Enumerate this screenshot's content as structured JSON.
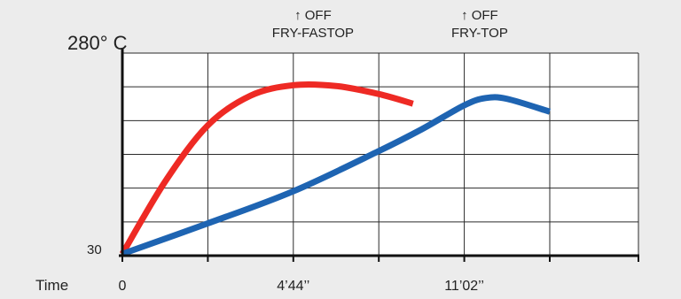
{
  "chart_data": {
    "type": "line",
    "xlabel": "Time",
    "ylabel": "",
    "y_top_label": "280° C",
    "y_bottom_label": "30",
    "ylim": [
      30,
      280
    ],
    "grid": true,
    "x_tick_labels": [
      {
        "x": 0,
        "label": "0"
      },
      {
        "x": 4,
        "label": "4’44’’"
      },
      {
        "x": 8,
        "label": "11’02’’"
      }
    ],
    "x_grid": [
      0,
      2,
      4,
      6,
      8,
      10
    ],
    "xlim": [
      0,
      12
    ],
    "series": [
      {
        "name": "",
        "color": "#ee2a24",
        "x": [
          0,
          1,
          2,
          3,
          4,
          5,
          6,
          6.8
        ],
        "y": [
          30,
          120,
          190,
          227,
          240,
          239,
          229,
          217
        ]
      },
      {
        "name": "",
        "color": "#1e64b2",
        "x": [
          0,
          2,
          4,
          6,
          7,
          8,
          8.5,
          9,
          10
        ],
        "y": [
          30,
          68,
          108,
          158,
          185,
          215,
          224,
          223,
          207
        ]
      }
    ],
    "annotations": [
      {
        "x": 5.6,
        "lines": [
          "↑ OFF",
          "FRY-FASTOP"
        ]
      },
      {
        "x": 9.5,
        "lines": [
          "↑ OFF",
          "FRY-TOP"
        ]
      }
    ]
  }
}
